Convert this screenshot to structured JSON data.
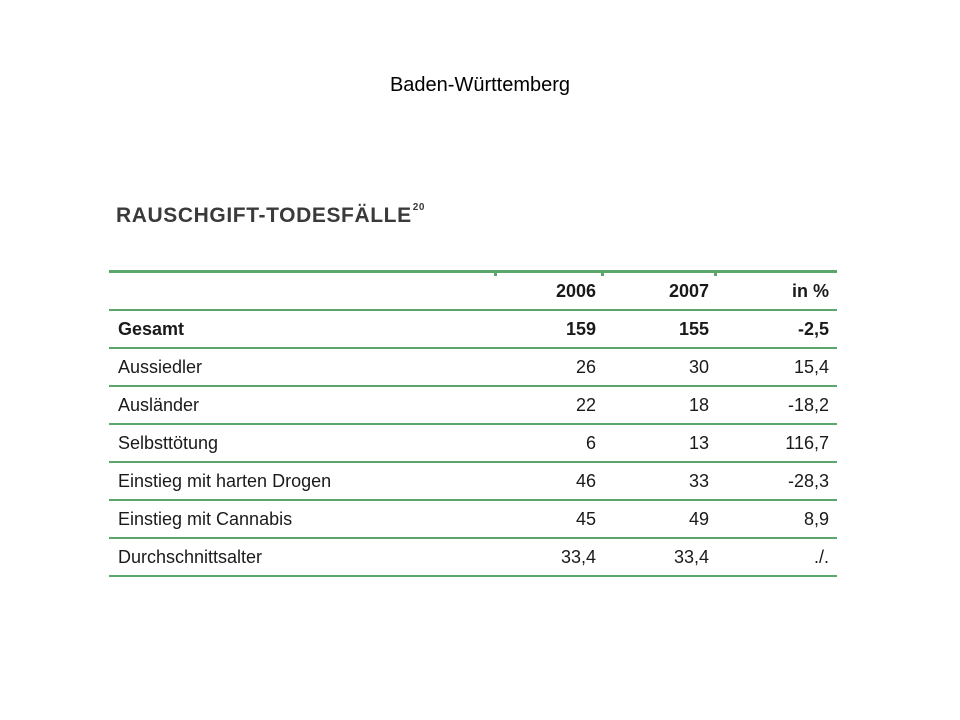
{
  "slide": {
    "title": "Baden-Württemberg"
  },
  "table": {
    "heading": "RAUSCHGIFT-TODESFÄLLE",
    "heading_footnote": "20",
    "columns": [
      "",
      "2006",
      "2007",
      "in %"
    ],
    "rows": [
      {
        "label": "Gesamt",
        "v2006": "159",
        "v2007": "155",
        "pct": "-2,5",
        "bold": true
      },
      {
        "label": "Aussiedler",
        "v2006": "26",
        "v2007": "30",
        "pct": "15,4"
      },
      {
        "label": "Ausländer",
        "v2006": "22",
        "v2007": "18",
        "pct": "-18,2"
      },
      {
        "label": "Selbsttötung",
        "v2006": "6",
        "v2007": "13",
        "pct": "116,7"
      },
      {
        "label": "Einstieg mit harten Drogen",
        "v2006": "46",
        "v2007": "33",
        "pct": "-28,3"
      },
      {
        "label": "Einstieg mit Cannabis",
        "v2006": "45",
        "v2007": "49",
        "pct": "8,9"
      },
      {
        "label": "Durchschnittsalter",
        "v2006": "33,4",
        "v2007": "33,4",
        "pct": "./."
      }
    ],
    "rule_color": "#5aa66c"
  }
}
